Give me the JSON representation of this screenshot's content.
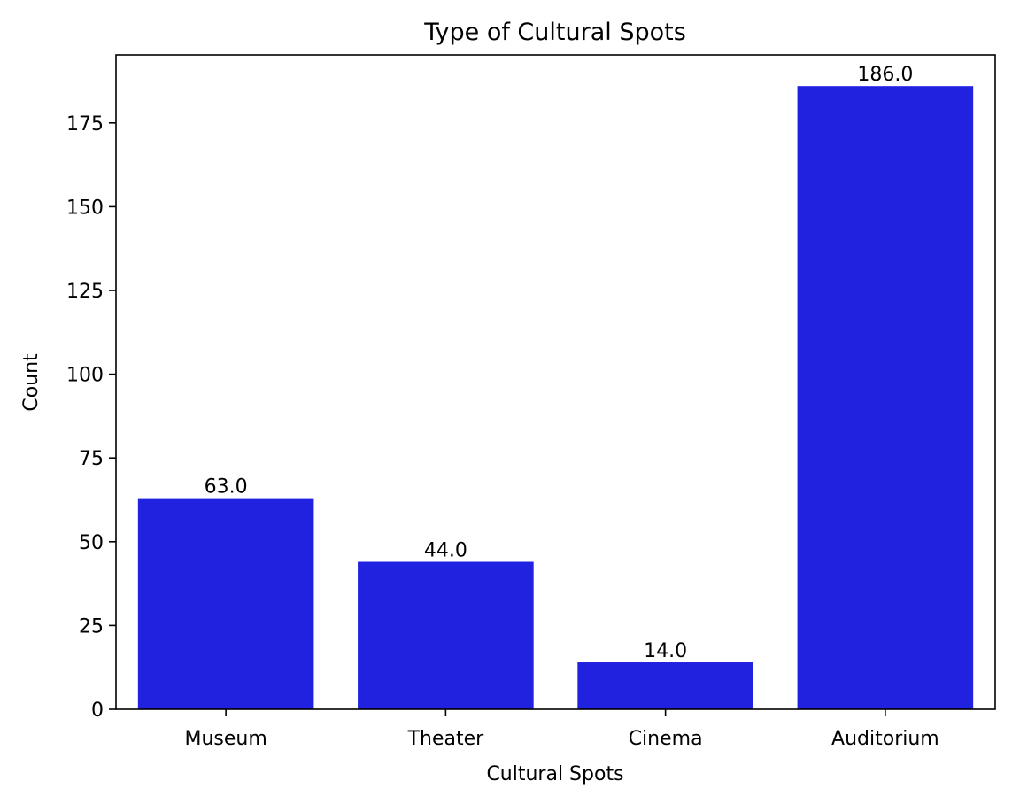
{
  "chart_data": {
    "type": "bar",
    "title": "Type of Cultural Spots",
    "xlabel": "Cultural Spots",
    "ylabel": "Count",
    "categories": [
      "Museum",
      "Theater",
      "Cinema",
      "Auditorium"
    ],
    "values": [
      63.0,
      44.0,
      14.0,
      186.0
    ],
    "value_labels": [
      "63.0",
      "44.0",
      "14.0",
      "186.0"
    ],
    "yticks": [
      0,
      25,
      50,
      75,
      100,
      125,
      150,
      175
    ],
    "ylim": [
      0,
      195.3
    ],
    "bar_color": "#2121e0",
    "grid": false,
    "legend": "none"
  }
}
